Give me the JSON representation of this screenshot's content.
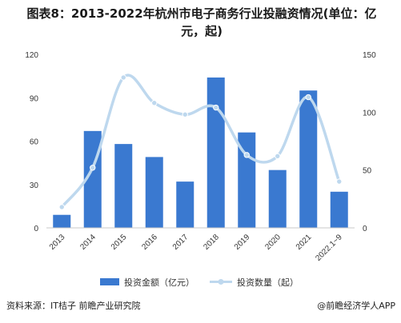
{
  "title_line1": "图表8：2013-2022年杭州市电子商务行业投融资情况(单位：亿",
  "title_line2": "元，起)",
  "footer": {
    "source": "资料来源：IT桔子 前瞻产业研究院",
    "brand": "@前瞻经济学人APP"
  },
  "colors": {
    "bar": "#3a79d0",
    "line": "#bed8ee",
    "axis": "#c8c8c8"
  },
  "chart_data": {
    "type": "bar",
    "categories": [
      "2013",
      "2014",
      "2015",
      "2016",
      "2017",
      "2018",
      "2019",
      "2020",
      "2021",
      "2022.1~9"
    ],
    "series": [
      {
        "name": "投资金额（亿元）",
        "type": "bar",
        "axis": "left",
        "values": [
          9,
          67,
          58,
          49,
          32,
          104,
          66,
          40,
          95,
          25
        ]
      },
      {
        "name": "投资数量（起）",
        "type": "line",
        "axis": "right",
        "smooth": true,
        "values": [
          18,
          52,
          130,
          108,
          98,
          104,
          63,
          62,
          113,
          40
        ]
      }
    ],
    "y_left": {
      "min": 0,
      "max": 120,
      "ticks": [
        0,
        30,
        60,
        90,
        120
      ]
    },
    "y_right": {
      "min": 0,
      "max": 150,
      "ticks": [
        0,
        50,
        100,
        150
      ]
    },
    "legend_position": "bottom"
  }
}
